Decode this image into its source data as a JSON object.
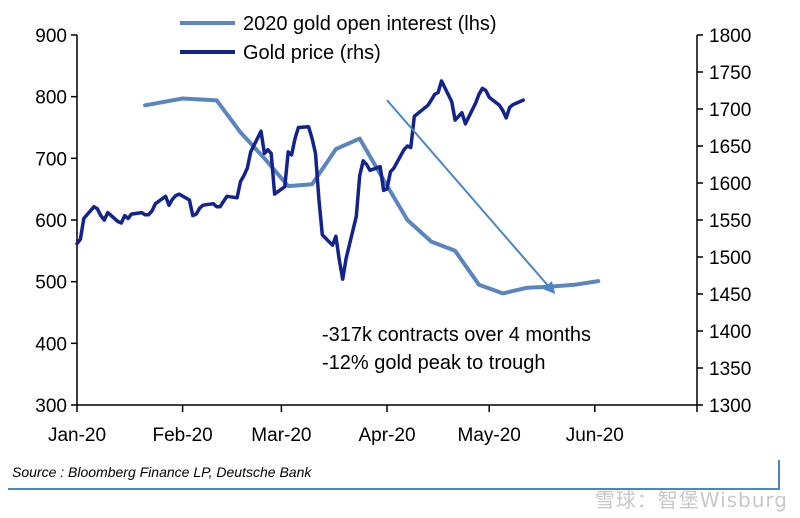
{
  "chart_data": {
    "type": "line",
    "title": "",
    "x_ticks": [
      "Jan-20",
      "Feb-20",
      "Mar-20",
      "Apr-20",
      "May-20",
      "Jun-20"
    ],
    "x_range": [
      "2020-01-01",
      "2020-06-30"
    ],
    "y_left": {
      "range": [
        300,
        900
      ],
      "ticks": [
        "300",
        "400",
        "500",
        "600",
        "700",
        "800",
        "900"
      ]
    },
    "y_right": {
      "range": [
        1300,
        1800
      ],
      "ticks": [
        "1300",
        "1350",
        "1400",
        "1450",
        "1500",
        "1550",
        "1600",
        "1650",
        "1700",
        "1750",
        "1800"
      ]
    },
    "grid": false,
    "legend_position": "top",
    "series": [
      {
        "name": "2020 gold open interest (lhs)",
        "axis": "left",
        "color": "#5b85be",
        "points": [
          [
            "2020-01-21",
            786
          ],
          [
            "2020-02-01",
            797
          ],
          [
            "2020-02-11",
            794
          ],
          [
            "2020-02-18",
            742
          ],
          [
            "2020-02-25",
            700
          ],
          [
            "2020-03-03",
            655
          ],
          [
            "2020-03-10",
            658
          ],
          [
            "2020-03-17",
            715
          ],
          [
            "2020-03-24",
            732
          ],
          [
            "2020-03-31",
            665
          ],
          [
            "2020-04-07",
            600
          ],
          [
            "2020-04-14",
            565
          ],
          [
            "2020-04-21",
            550
          ],
          [
            "2020-04-28",
            495
          ],
          [
            "2020-05-05",
            481
          ],
          [
            "2020-05-12",
            490
          ],
          [
            "2020-05-19",
            492
          ],
          [
            "2020-05-26",
            495
          ],
          [
            "2020-06-02",
            501
          ]
        ]
      },
      {
        "name": "Gold price (rhs)",
        "axis": "right",
        "color": "#13238c",
        "points": [
          [
            "2020-01-01",
            1518
          ],
          [
            "2020-01-02",
            1524
          ],
          [
            "2020-01-03",
            1552
          ],
          [
            "2020-01-06",
            1568
          ],
          [
            "2020-01-07",
            1565
          ],
          [
            "2020-01-08",
            1556
          ],
          [
            "2020-01-09",
            1550
          ],
          [
            "2020-01-10",
            1560
          ],
          [
            "2020-01-13",
            1548
          ],
          [
            "2020-01-14",
            1546
          ],
          [
            "2020-01-15",
            1556
          ],
          [
            "2020-01-16",
            1552
          ],
          [
            "2020-01-17",
            1558
          ],
          [
            "2020-01-20",
            1560
          ],
          [
            "2020-01-21",
            1557
          ],
          [
            "2020-01-22",
            1557
          ],
          [
            "2020-01-23",
            1562
          ],
          [
            "2020-01-24",
            1572
          ],
          [
            "2020-01-27",
            1582
          ],
          [
            "2020-01-28",
            1570
          ],
          [
            "2020-01-29",
            1578
          ],
          [
            "2020-01-30",
            1583
          ],
          [
            "2020-01-31",
            1585
          ],
          [
            "2020-02-03",
            1577
          ],
          [
            "2020-02-04",
            1556
          ],
          [
            "2020-02-05",
            1558
          ],
          [
            "2020-02-06",
            1566
          ],
          [
            "2020-02-07",
            1570
          ],
          [
            "2020-02-10",
            1572
          ],
          [
            "2020-02-11",
            1568
          ],
          [
            "2020-02-12",
            1568
          ],
          [
            "2020-02-13",
            1575
          ],
          [
            "2020-02-14",
            1582
          ],
          [
            "2020-02-17",
            1580
          ],
          [
            "2020-02-18",
            1602
          ],
          [
            "2020-02-19",
            1610
          ],
          [
            "2020-02-20",
            1620
          ],
          [
            "2020-02-21",
            1642
          ],
          [
            "2020-02-24",
            1670
          ],
          [
            "2020-02-25",
            1640
          ],
          [
            "2020-02-26",
            1645
          ],
          [
            "2020-02-27",
            1640
          ],
          [
            "2020-02-28",
            1585
          ],
          [
            "2020-03-02",
            1595
          ],
          [
            "2020-03-03",
            1642
          ],
          [
            "2020-03-04",
            1638
          ],
          [
            "2020-03-05",
            1660
          ],
          [
            "2020-03-06",
            1675
          ],
          [
            "2020-03-09",
            1676
          ],
          [
            "2020-03-10",
            1660
          ],
          [
            "2020-03-11",
            1640
          ],
          [
            "2020-03-12",
            1578
          ],
          [
            "2020-03-13",
            1530
          ],
          [
            "2020-03-16",
            1516
          ],
          [
            "2020-03-17",
            1528
          ],
          [
            "2020-03-18",
            1496
          ],
          [
            "2020-03-19",
            1470
          ],
          [
            "2020-03-20",
            1498
          ],
          [
            "2020-03-23",
            1555
          ],
          [
            "2020-03-24",
            1610
          ],
          [
            "2020-03-25",
            1630
          ],
          [
            "2020-03-26",
            1625
          ],
          [
            "2020-03-27",
            1617
          ],
          [
            "2020-03-30",
            1622
          ],
          [
            "2020-03-31",
            1590
          ],
          [
            "2020-04-01",
            1592
          ],
          [
            "2020-04-02",
            1615
          ],
          [
            "2020-04-03",
            1620
          ],
          [
            "2020-04-06",
            1645
          ],
          [
            "2020-04-07",
            1650
          ],
          [
            "2020-04-08",
            1648
          ],
          [
            "2020-04-09",
            1690
          ],
          [
            "2020-04-13",
            1705
          ],
          [
            "2020-04-14",
            1712
          ],
          [
            "2020-04-15",
            1720
          ],
          [
            "2020-04-16",
            1722
          ],
          [
            "2020-04-17",
            1738
          ],
          [
            "2020-04-20",
            1710
          ],
          [
            "2020-04-21",
            1685
          ],
          [
            "2020-04-22",
            1690
          ],
          [
            "2020-04-23",
            1695
          ],
          [
            "2020-04-24",
            1680
          ],
          [
            "2020-04-27",
            1708
          ],
          [
            "2020-04-28",
            1720
          ],
          [
            "2020-04-29",
            1728
          ],
          [
            "2020-04-30",
            1725
          ],
          [
            "2020-05-01",
            1716
          ],
          [
            "2020-05-04",
            1705
          ],
          [
            "2020-05-05",
            1698
          ],
          [
            "2020-05-06",
            1688
          ],
          [
            "2020-05-07",
            1702
          ],
          [
            "2020-05-08",
            1706
          ],
          [
            "2020-05-11",
            1712
          ]
        ]
      }
    ],
    "annotation_arrow": {
      "from": [
        "2020-04-01",
        1712
      ],
      "to": [
        "2020-05-20",
        1452
      ]
    },
    "annotations": [
      "-317k contracts over 4 months",
      "-12% gold peak to trough"
    ]
  },
  "source": "Source : Bloomberg Finance LP, Deutsche Bank",
  "watermark": "雪球：智堡Wisburg"
}
